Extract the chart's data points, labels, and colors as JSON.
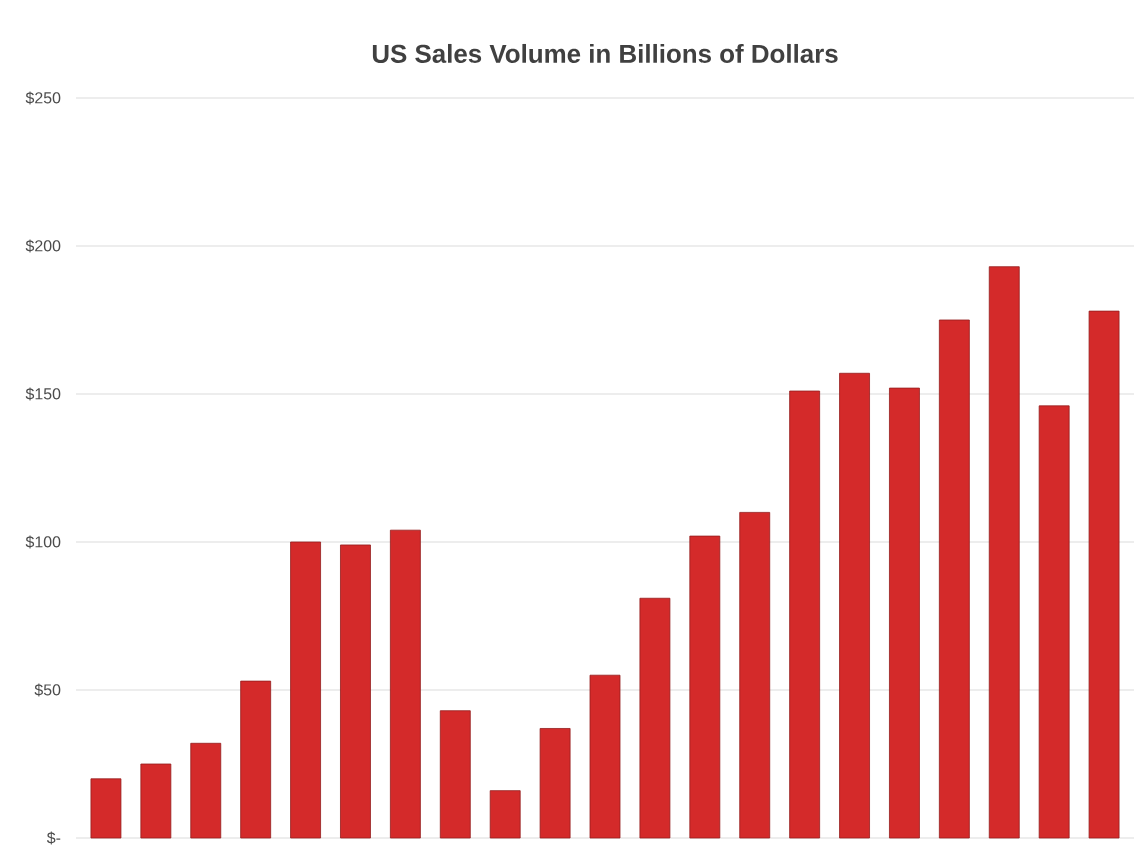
{
  "chart_data": {
    "type": "bar",
    "title": "US Sales Volume in Billions of Dollars",
    "categories": [
      null,
      null,
      null,
      null,
      null,
      null,
      null,
      null,
      null,
      null,
      null,
      null,
      null,
      null,
      null,
      null,
      null,
      null,
      null,
      null,
      null
    ],
    "values": [
      20,
      25,
      32,
      53,
      100,
      99,
      104,
      43,
      16,
      37,
      55,
      81,
      102,
      110,
      151,
      157,
      152,
      175,
      193,
      146,
      178
    ],
    "color": "#d42a2a",
    "ylim": [
      0,
      250
    ],
    "yticks": [
      {
        "value": 0,
        "label": "$-"
      },
      {
        "value": 50,
        "label": "$50"
      },
      {
        "value": 100,
        "label": "$100"
      },
      {
        "value": 150,
        "label": "$150"
      },
      {
        "value": 200,
        "label": "$200"
      },
      {
        "value": 250,
        "label": "$250"
      }
    ],
    "grid": "y"
  }
}
